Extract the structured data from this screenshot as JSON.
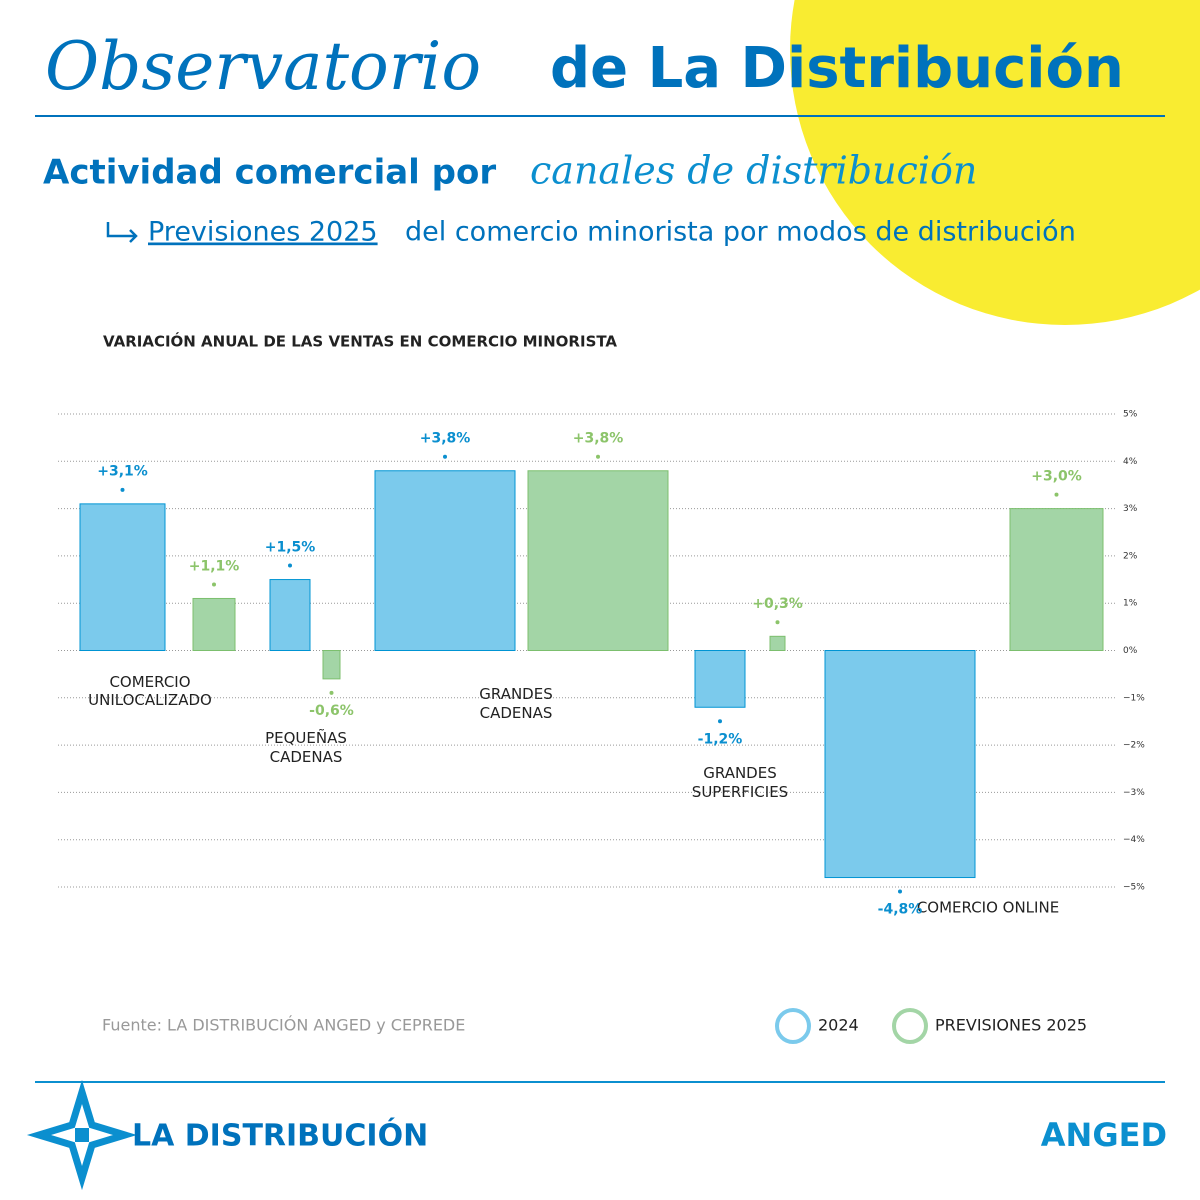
{
  "header": {
    "title_italic": "Observatorio",
    "title_rest": "de La Distribución",
    "subtitle_plain": "Actividad comercial por",
    "subtitle_italic": "canales de distribución",
    "subheading_link": "Previsiones 2025",
    "subheading_rest": "del comercio minorista por modos de distribución"
  },
  "chart_data": {
    "type": "bar",
    "title": "VARIACIÓN ANUAL DE LAS VENTAS EN COMERCIO MINORISTA",
    "categories": [
      "COMERCIO UNILOCALIZADO",
      "PEQUEÑAS CADENAS",
      "GRANDES CADENAS",
      "GRANDES SUPERFICIES",
      "COMERCIO ONLINE"
    ],
    "series": [
      {
        "name": "2024",
        "color": "#7bcaec",
        "values": [
          3.1,
          1.5,
          3.8,
          -1.2,
          -4.8
        ],
        "value_labels": [
          "+3,1%",
          "+1,5%",
          "+3,8%",
          "-1,2%",
          "-4,8%"
        ]
      },
      {
        "name": "PREVISIONES 2025",
        "color": "#a3d5a6",
        "values": [
          1.1,
          -0.6,
          3.8,
          0.3,
          3.0
        ],
        "value_labels": [
          "+1,1%",
          "-0,6%",
          "+3,8%",
          "+0,3%",
          "+3,0%"
        ]
      }
    ],
    "ylim": [
      -5,
      5
    ],
    "yticks": [
      {
        "value": 5,
        "label": "5%"
      },
      {
        "value": 4,
        "label": "4%"
      },
      {
        "value": 3,
        "label": "3%"
      },
      {
        "value": 2,
        "label": "2%"
      },
      {
        "value": 1,
        "label": "1%"
      },
      {
        "value": 0,
        "label": "0%"
      },
      {
        "value": -1,
        "label": "−1%"
      },
      {
        "value": -2,
        "label": "−2%"
      },
      {
        "value": -3,
        "label": "−3%"
      },
      {
        "value": -4,
        "label": "−4%"
      },
      {
        "value": -5,
        "label": "−5%"
      }
    ],
    "grid": true,
    "source": "Fuente: LA DISTRIBUCIÓN ANGED y CEPREDE"
  },
  "footer": {
    "logo_left": "LA DISTRIBUCIÓN",
    "logo_right": "ANGED"
  }
}
